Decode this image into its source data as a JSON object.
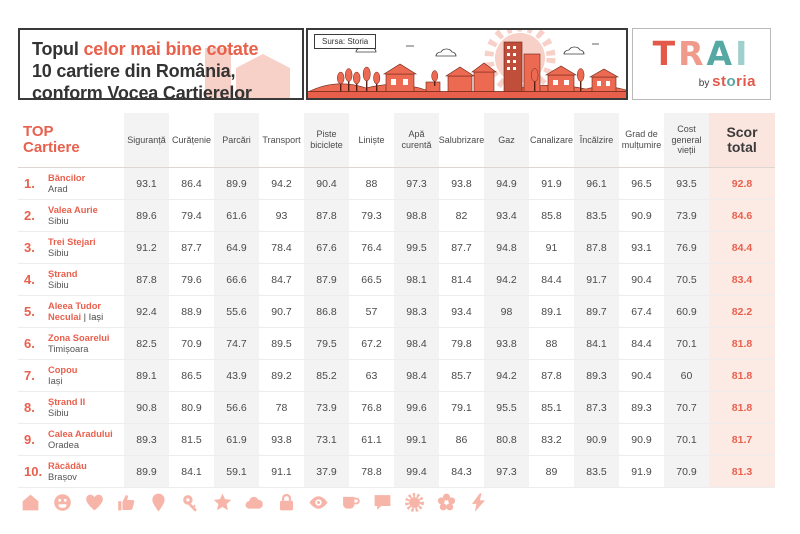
{
  "header": {
    "title": {
      "lead": "Topul",
      "highlight": "celor mai bine cotate",
      "line2": "10 cartiere din România,",
      "line3": "conform Vocea Cartierelor"
    },
    "source_label": "Sursa: Storia",
    "logo": {
      "letters": [
        "T",
        "R",
        "A",
        "I"
      ],
      "by": "by",
      "storia_parts": [
        "st",
        "o",
        "ria"
      ]
    }
  },
  "accent_colors": {
    "red": "#e8604e",
    "pale_pink": "#f7d0c8",
    "icon_salmon": "#f6b5a8",
    "stripe_gray": "#f4f3f3",
    "score_bg": "#fceae5",
    "teal": "#55a8a4"
  },
  "chart_data": {
    "type": "table",
    "title": "Topul celor mai bine cotate 10 cartiere din România, conform Vocea Cartierelor",
    "top_header": {
      "line1": "TOP",
      "line2": "Cartiere"
    },
    "columns": [
      "Siguranță",
      "Curățenie",
      "Parcări",
      "Transport",
      "Piste biciclete",
      "Liniște",
      "Apă curentă",
      "Salubrizare",
      "Gaz",
      "Canalizare",
      "Încălzire",
      "Grad de mulțumire",
      "Cost general vieții"
    ],
    "score_header": {
      "line1": "Scor",
      "line2": "total"
    },
    "rows": [
      {
        "rank": "1.",
        "name": "Băncilor",
        "city": "Arad",
        "values": [
          93.1,
          86.4,
          89.9,
          94.2,
          90.4,
          88,
          97.3,
          93.8,
          94.9,
          91.9,
          96.1,
          96.5,
          93.5
        ],
        "score": 92.8
      },
      {
        "rank": "2.",
        "name": "Valea Aurie",
        "city": "Sibiu",
        "values": [
          89.6,
          79.4,
          61.6,
          93,
          87.8,
          79.3,
          98.8,
          82,
          93.4,
          85.8,
          83.5,
          90.9,
          73.9
        ],
        "score": 84.6
      },
      {
        "rank": "3.",
        "name": "Trei Stejari",
        "city": "Sibiu",
        "values": [
          91.2,
          87.7,
          64.9,
          78.4,
          67.6,
          76.4,
          99.5,
          87.7,
          94.8,
          91,
          87.8,
          93.1,
          76.9
        ],
        "score": 84.4
      },
      {
        "rank": "4.",
        "name": "Ștrand",
        "city": "Sibiu",
        "values": [
          87.8,
          79.6,
          66.6,
          84.7,
          87.9,
          66.5,
          98.1,
          81.4,
          94.2,
          84.4,
          91.7,
          90.4,
          70.5
        ],
        "score": 83.4
      },
      {
        "rank": "5.",
        "name": "Aleea Tudor Neculai",
        "city": "| Iași",
        "city_inline": true,
        "values": [
          92.4,
          88.9,
          55.6,
          90.7,
          86.8,
          57,
          98.3,
          93.4,
          98,
          89.1,
          89.7,
          67.4,
          60.9
        ],
        "score": 82.2
      },
      {
        "rank": "6.",
        "name": "Zona Soarelui",
        "city": "Timișoara",
        "values": [
          82.5,
          70.9,
          74.7,
          89.5,
          79.5,
          67.2,
          98.4,
          79.8,
          93.8,
          88,
          84.1,
          84.4,
          70.1
        ],
        "score": 81.8
      },
      {
        "rank": "7.",
        "name": "Copou",
        "city": "Iași",
        "values": [
          89.1,
          86.5,
          43.9,
          89.2,
          85.2,
          63,
          98.4,
          85.7,
          94.2,
          87.8,
          89.3,
          90.4,
          60
        ],
        "score": 81.8
      },
      {
        "rank": "8.",
        "name": "Ștrand II",
        "city": "Sibiu",
        "values": [
          90.8,
          80.9,
          56.6,
          78,
          73.9,
          76.8,
          99.6,
          79.1,
          95.5,
          85.1,
          87.3,
          89.3,
          70.7
        ],
        "score": 81.8
      },
      {
        "rank": "9.",
        "name": "Calea Aradului",
        "city": "Oradea",
        "values": [
          89.3,
          81.5,
          61.9,
          93.8,
          73.1,
          61.1,
          99.1,
          86,
          80.8,
          83.2,
          90.9,
          90.9,
          70.1
        ],
        "score": 81.7
      },
      {
        "rank": "10.",
        "name": "Răcădău",
        "city": "Brașov",
        "values": [
          89.9,
          84.1,
          59.1,
          91.1,
          37.9,
          78.8,
          99.4,
          84.3,
          97.3,
          89,
          83.5,
          91.9,
          70.9
        ],
        "score": 81.3
      }
    ]
  },
  "footer_icons": [
    "house",
    "smiley",
    "heart",
    "thumbs-up",
    "location-pin",
    "key",
    "star",
    "cloud",
    "lock",
    "eye",
    "cup",
    "speech-bubble",
    "sun-burst",
    "flower",
    "lightning"
  ]
}
